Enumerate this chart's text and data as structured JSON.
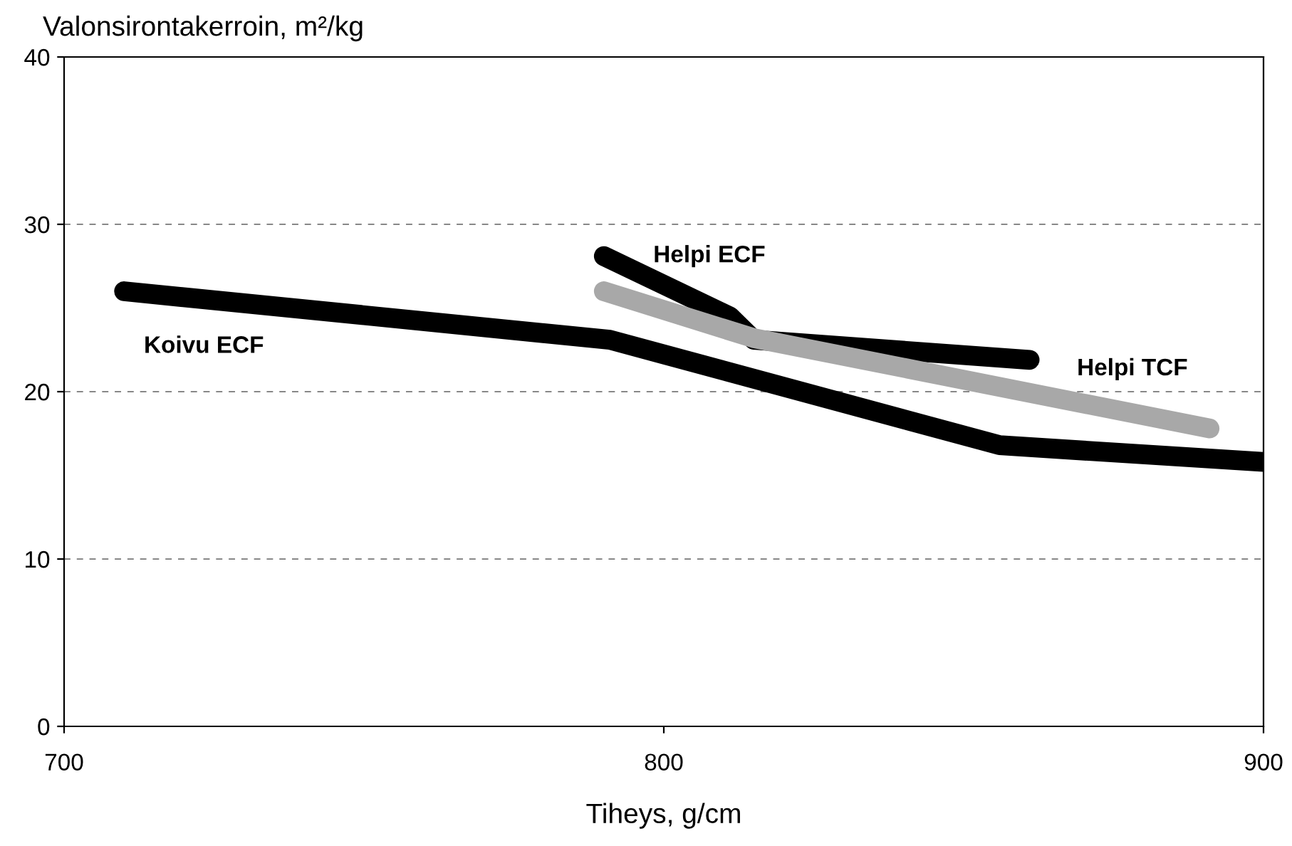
{
  "chart_data": {
    "type": "line",
    "ylabel": "Valonsirontakerroin, m²/kg",
    "xlabel": "Tiheys, g/cm",
    "xlim": [
      700,
      900
    ],
    "xticks": [
      700,
      800,
      900
    ],
    "ylim": [
      0,
      40
    ],
    "yticks": [
      0,
      10,
      20,
      30,
      40
    ],
    "grid": "y",
    "line_style": "solid",
    "legend": false,
    "series": [
      {
        "name": "Koivu ECF",
        "color": "#000000",
        "x": [
          710,
          791,
          856,
          900
        ],
        "values": [
          26,
          23.1,
          16.8,
          15.8
        ]
      },
      {
        "name": "Helpi ECF",
        "color": "#000000",
        "x": [
          790,
          811,
          815,
          861
        ],
        "values": [
          28.1,
          24.5,
          23.1,
          21.9
        ]
      },
      {
        "name": "Helpi TCF",
        "color": "#a8a8a8",
        "x": [
          790,
          815,
          891
        ],
        "values": [
          26,
          23.2,
          17.8
        ]
      }
    ]
  }
}
